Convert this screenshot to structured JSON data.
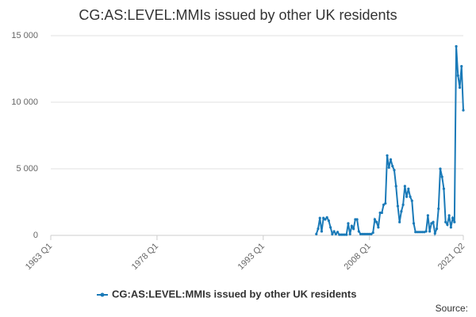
{
  "chart_data": {
    "type": "line",
    "title": "CG:AS:LEVEL:MMIs issued by other UK residents",
    "source": "Source:",
    "x": [
      2000.5,
      2000.75,
      2001,
      2001.25,
      2001.5,
      2001.75,
      2002,
      2002.25,
      2002.5,
      2002.75,
      2003,
      2003.25,
      2003.5,
      2003.75,
      2004,
      2004.25,
      2004.5,
      2004.75,
      2005,
      2005.25,
      2005.5,
      2005.75,
      2006,
      2006.25,
      2006.5,
      2006.75,
      2007,
      2007.25,
      2007.5,
      2007.75,
      2008,
      2008.25,
      2008.5,
      2008.75,
      2009,
      2009.25,
      2009.5,
      2009.75,
      2010,
      2010.25,
      2010.5,
      2010.75,
      2011,
      2011.25,
      2011.5,
      2011.75,
      2012,
      2012.25,
      2012.5,
      2012.75,
      2013,
      2013.25,
      2013.5,
      2013.75,
      2014,
      2014.25,
      2014.5,
      2014.75,
      2015,
      2015.25,
      2015.5,
      2015.75,
      2016,
      2016.25,
      2016.5,
      2016.75,
      2017,
      2017.25,
      2017.5,
      2017.75,
      2018,
      2018.25,
      2018.5,
      2018.75,
      2019,
      2019.25,
      2019.5,
      2019.75,
      2020,
      2020.25,
      2020.5,
      2020.75,
      2021,
      2021.25
    ],
    "series": [
      {
        "name": "CG:AS:LEVEL:MMIs issued by other UK residents",
        "color": "#1a7ab8",
        "values": [
          100,
          500,
          1300,
          300,
          1300,
          1200,
          1350,
          1100,
          600,
          100,
          300,
          100,
          250,
          50,
          50,
          50,
          50,
          50,
          900,
          100,
          700,
          500,
          1200,
          1200,
          300,
          100,
          100,
          100,
          100,
          100,
          100,
          100,
          200,
          1200,
          1000,
          600,
          1700,
          1700,
          2300,
          2400,
          6000,
          5100,
          5700,
          5200,
          4900,
          3700,
          2200,
          1000,
          1800,
          2300,
          3700,
          2900,
          3500,
          2900,
          2600,
          900,
          250,
          250,
          250,
          250,
          250,
          250,
          300,
          1500,
          300,
          900,
          1000,
          150,
          500,
          2000,
          5000,
          4400,
          3500,
          1000,
          800,
          1500,
          600,
          1300,
          1000,
          14200,
          12000,
          11100,
          12700,
          9400
        ]
      }
    ],
    "xlim": [
      1963,
      2021.25
    ],
    "xticks": [
      {
        "value": 1963,
        "label": "1963 Q1"
      },
      {
        "value": 1978,
        "label": "1978 Q1"
      },
      {
        "value": 1993,
        "label": "1993 Q1"
      },
      {
        "value": 2008,
        "label": "2008 Q1"
      },
      {
        "value": 2021.25,
        "label": "2021 Q2"
      }
    ],
    "ylim": [
      0,
      15000
    ],
    "yticks": [
      0,
      {
        "value": 5000,
        "label": "5 000"
      },
      {
        "value": 10000,
        "label": "10 000"
      },
      {
        "value": 15000,
        "label": "15 000"
      }
    ],
    "grid": true
  }
}
